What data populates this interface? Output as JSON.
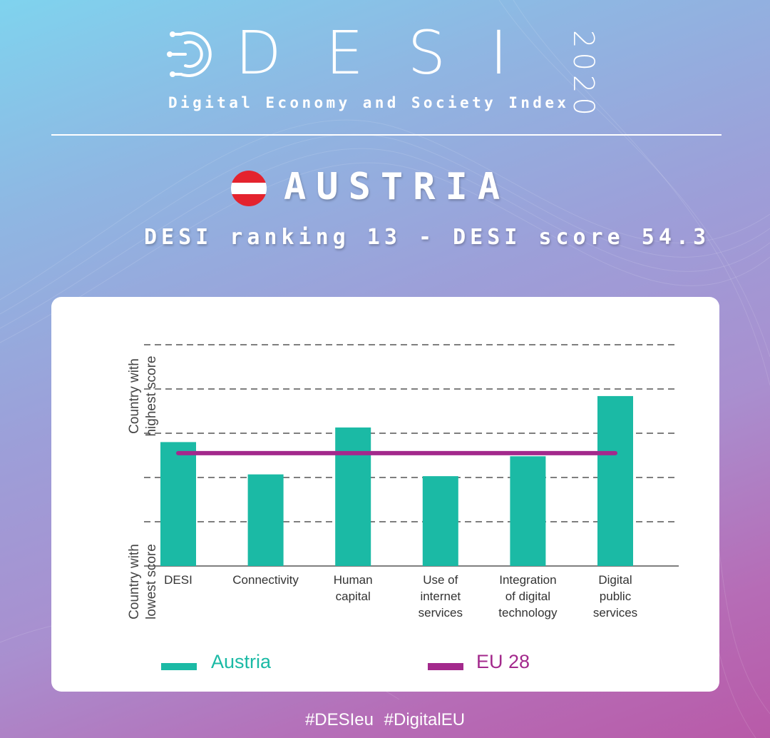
{
  "header": {
    "logo_word": "DESI",
    "year": "2020",
    "subtitle": "Digital Economy and Society Index"
  },
  "country": {
    "name": "AUSTRIA",
    "flag_colors": [
      "#e4232e",
      "#ffffff",
      "#e4232e"
    ],
    "ranking_line": "DESI ranking 13 - DESI score 54.3"
  },
  "chart_data": {
    "type": "bar",
    "categories": [
      "DESI",
      "Connectivity",
      "Human\ncapital",
      "Use of\ninternet\nservices",
      "Integration\nof digital\ntechnology",
      "Digital\npublic\nservices"
    ],
    "series": [
      {
        "name": "Austria",
        "type": "bar",
        "color": "#1bbaa5",
        "values": [
          2.8,
          2.07,
          3.13,
          2.03,
          2.48,
          3.84
        ]
      },
      {
        "name": "EU 28",
        "type": "line",
        "color": "#a3298c",
        "value": 2.55
      }
    ],
    "ylabel_top": "Country with\nhighest score",
    "ylabel_bottom": "Country with\nlowest score",
    "ylim": [
      0,
      5
    ],
    "grid": "dashed horizontal",
    "legend_position": "bottom"
  },
  "legend": {
    "austria": "Austria",
    "eu": "EU 28"
  },
  "footer": {
    "hashtags": "#DESIeu  #DigitalEU"
  }
}
